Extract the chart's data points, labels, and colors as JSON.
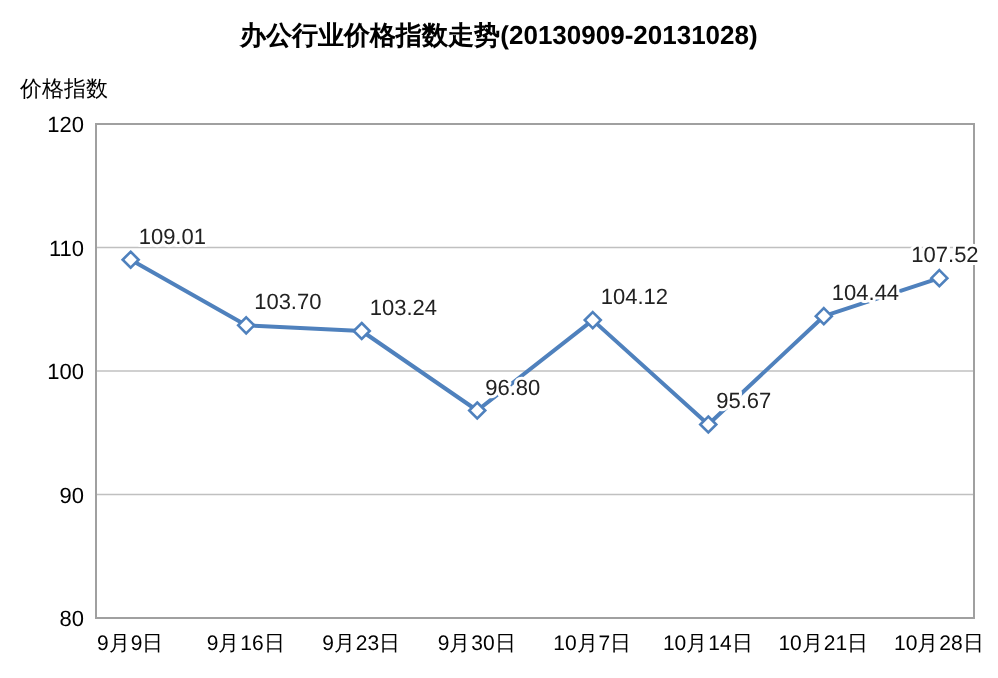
{
  "chart_data": {
    "type": "line",
    "title": "办公行业价格指数走势(20130909-20131028)",
    "ylabel": "价格指数",
    "categories": [
      "9月9日",
      "9月16日",
      "9月23日",
      "9月30日",
      "10月7日",
      "10月14日",
      "10月21日",
      "10月28日"
    ],
    "series": [
      {
        "color": "#4f81bd",
        "values": [
          109.01,
          103.7,
          103.24,
          96.8,
          104.12,
          95.67,
          104.44,
          107.52
        ],
        "value_labels": [
          "109.01",
          "103.70",
          "103.24",
          "96.80",
          "104.12",
          "95.67",
          "104.44",
          "107.52"
        ]
      }
    ],
    "ylim": [
      80,
      120
    ],
    "yticks": [
      80,
      90,
      100,
      110,
      120
    ],
    "grid": "y",
    "marker": "diamond",
    "line_style": "solid"
  }
}
